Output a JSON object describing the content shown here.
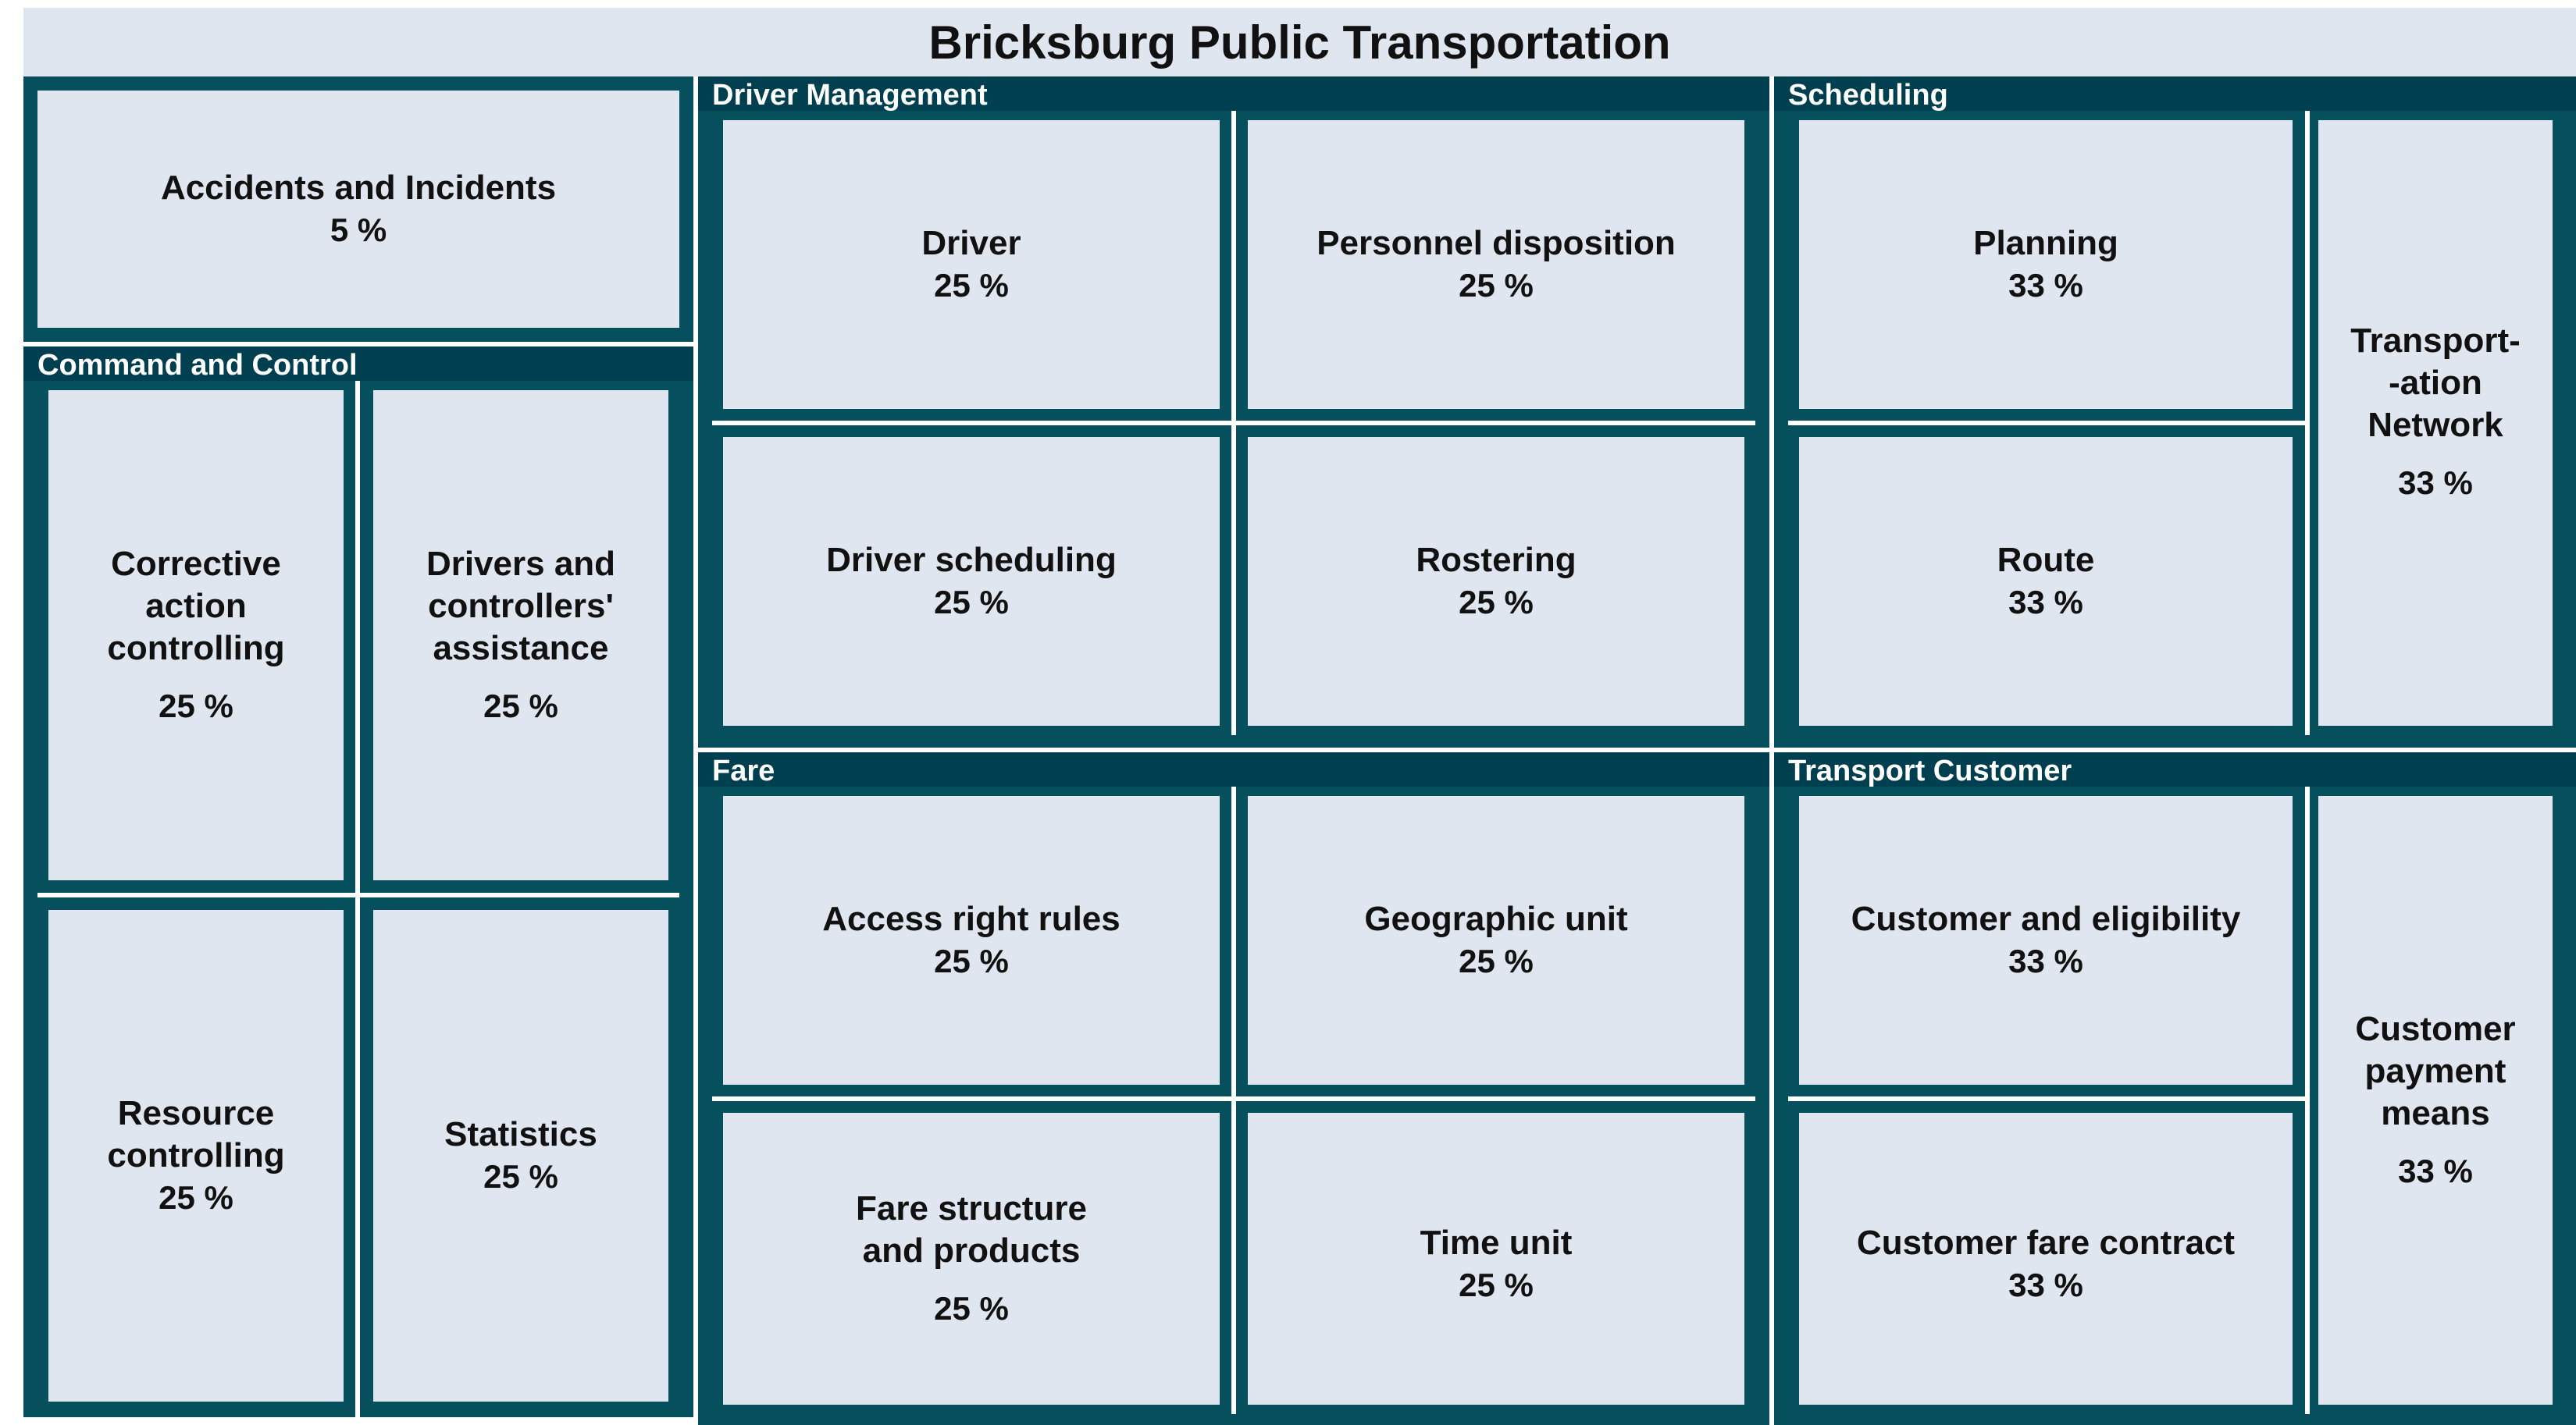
{
  "title": "Bricksburg Public Transportation",
  "colors": {
    "group_border": "#06505e",
    "group_header": "#003f4f",
    "tile_fill": "#dfe6ef",
    "separator": "#ffffff"
  },
  "groups": {
    "accidents": {
      "tiles": [
        {
          "label": "Accidents and Incidents",
          "value": "5 %"
        }
      ]
    },
    "command": {
      "label": "Command and Control",
      "tiles": [
        {
          "label": "Corrective\naction\ncontrolling",
          "value": "25 %"
        },
        {
          "label": "Drivers and\ncontrollers'\nassistance",
          "value": "25 %"
        },
        {
          "label": "Resource\ncontrolling",
          "value": "25 %"
        },
        {
          "label": "Statistics",
          "value": "25 %"
        }
      ]
    },
    "driver_mgmt": {
      "label": "Driver Management",
      "tiles": [
        {
          "label": "Driver",
          "value": "25 %"
        },
        {
          "label": "Personnel disposition",
          "value": "25 %"
        },
        {
          "label": "Driver scheduling",
          "value": "25 %"
        },
        {
          "label": "Rostering",
          "value": "25 %"
        }
      ]
    },
    "scheduling": {
      "label": "Scheduling",
      "tiles": [
        {
          "label": "Planning",
          "value": "33 %"
        },
        {
          "label": "Route",
          "value": "33 %"
        },
        {
          "label": "Transport-\n-ation\nNetwork",
          "value": "33 %"
        }
      ]
    },
    "fare": {
      "label": "Fare",
      "tiles": [
        {
          "label": "Access right rules",
          "value": "25 %"
        },
        {
          "label": "Geographic unit",
          "value": "25 %"
        },
        {
          "label": "Fare structure\nand products",
          "value": "25 %"
        },
        {
          "label": "Time unit",
          "value": "25 %"
        }
      ]
    },
    "customer": {
      "label": "Transport Customer",
      "tiles": [
        {
          "label": "Customer and eligibility",
          "value": "33 %"
        },
        {
          "label": "Customer fare contract",
          "value": "33 %"
        },
        {
          "label": "Customer\npayment\nmeans",
          "value": "33 %"
        }
      ]
    }
  }
}
